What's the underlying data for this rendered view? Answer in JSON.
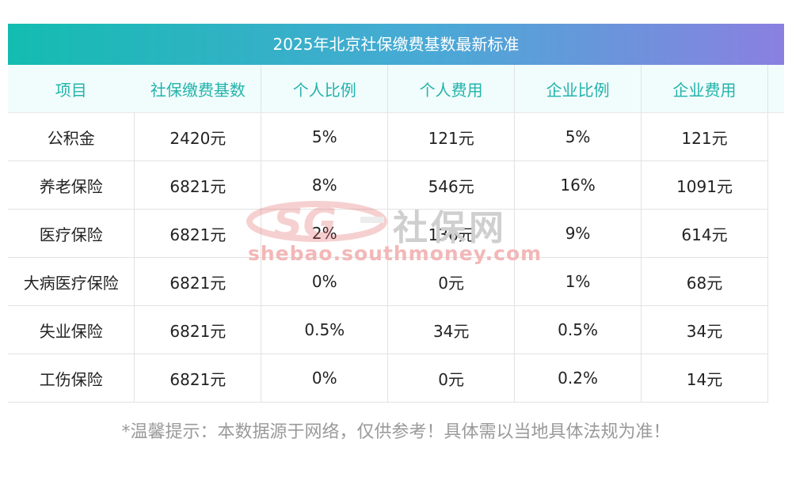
{
  "title": "2025年北京社保缴费基数最新标准",
  "headers": [
    "项目",
    "社保缴费基数",
    "个人比例",
    "个人费用",
    "企业比例",
    "企业费用"
  ],
  "rows": [
    [
      "公积金",
      "2420元",
      "5%",
      "121元",
      "5%",
      "121元"
    ],
    [
      "养老保险",
      "6821元",
      "8%",
      "546元",
      "16%",
      "1091元"
    ],
    [
      "医疗保险",
      "6821元",
      "2%",
      "136元",
      "9%",
      "614元"
    ],
    [
      "大病医疗保险",
      "6821元",
      "0%",
      "0元",
      "1%",
      "68元"
    ],
    [
      "失业保险",
      "6821元",
      "0.5%",
      "34元",
      "0.5%",
      "34元"
    ],
    [
      "工伤保险",
      "6821元",
      "0%",
      "0元",
      "0.2%",
      "14元"
    ]
  ],
  "watermark": {
    "logo_text": "社保网",
    "url": "shebao.southmoney.com"
  },
  "note": "*温馨提示：本数据源于网络，仅供参考！具体需以当地具体法规为准！",
  "colors": {
    "title_gradient_start": "#13bcb0",
    "title_gradient_end": "#8a80e0",
    "header_text": "#22b3ab",
    "header_bg": "#f1fcfc"
  }
}
